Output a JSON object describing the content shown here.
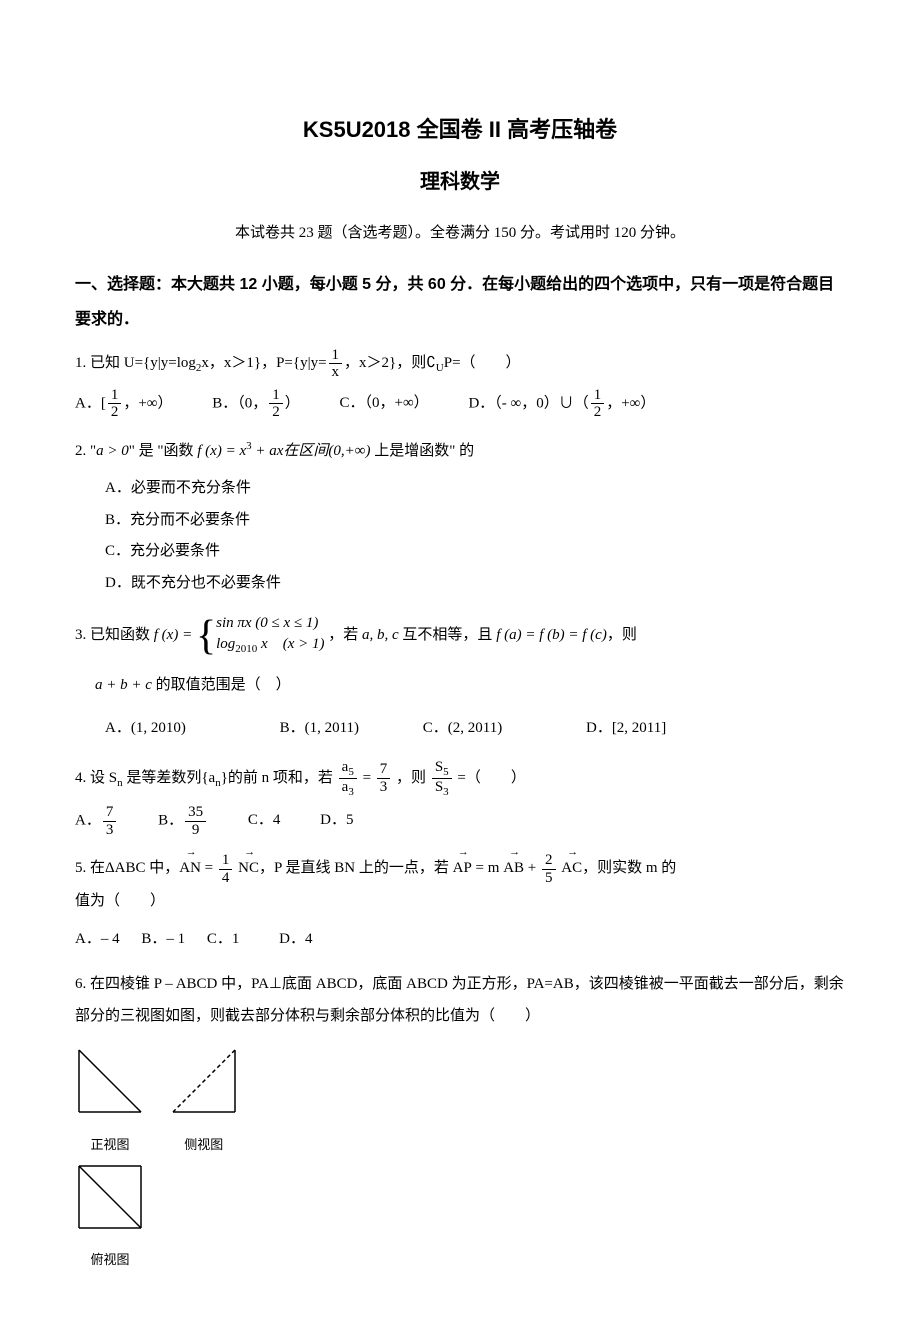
{
  "page": {
    "title": "KS5U2018 全国卷 II 高考压轴卷",
    "subtitle": "理科数学",
    "instructions": "本试卷共 23 题（含选考题）。全卷满分 150 分。考试用时 120 分钟。",
    "section_heading": "一、选择题：本大题共 12 小题，每小题 5 分，共 60 分．在每小题给出的四个选项中，只有一项是符合题目要求的．"
  },
  "questions": {
    "q1": {
      "stem_pre": "1. 已知 U={y|y=log",
      "stem_sub1": "2",
      "stem_mid1": "x，x＞1}，P={y|y=",
      "frac1_num": "1",
      "frac1_den": "x",
      "stem_mid2": "，x＞2}，则",
      "complement": "∁",
      "complement_sub": "U",
      "stem_end": "P=（　　）",
      "optA_pre": "A．[",
      "optA_num": "1",
      "optA_den": "2",
      "optA_post": "，+∞）",
      "optB_pre": "B．（0，",
      "optB_num": "1",
      "optB_den": "2",
      "optB_post": "）",
      "optC": "C．（0，+∞）",
      "optD_pre": "D．（- ∞，0）∪（",
      "optD_num": "1",
      "optD_den": "2",
      "optD_post": "，+∞）"
    },
    "q2": {
      "stem_pre": "2. \"",
      "a_gt": "a > 0",
      "stem_mid": "\" 是 \"函数 ",
      "fx": "f (x) = x",
      "sup3": "3",
      "plus_ax": " + ax在区间(0,+∞)",
      "stem_end": " 上是增函数\" 的",
      "optA": "A．必要而不充分条件",
      "optB": "B．充分而不必要条件",
      "optC": "C．充分必要条件",
      "optD": "D．既不充分也不必要条件"
    },
    "q3": {
      "stem_pre": "3. 已知函数 ",
      "fx_eq": "f (x) = ",
      "row1": "sin πx (0 ≤ x ≤ 1)",
      "row2_pre": "log",
      "row2_sub": "2010",
      "row2_post": " x　(x > 1)",
      "stem_mid": "，若 ",
      "abc": "a, b, c",
      "stem_mid2": " 互不相等，且 ",
      "eq": "f (a) = f (b) = f (c)",
      "stem_end": "，则",
      "line2_pre": "a + b + c",
      "line2_post": " 的取值范围是（　）",
      "optA": "A．(1, 2010)",
      "optB": "B．(1, 2011)",
      "optC": "C．(2, 2011)",
      "optD": "D．[2, 2011]"
    },
    "q4": {
      "stem_pre": "4. 设 S",
      "sub_n": "n",
      "stem_mid1": " 是等差数列{a",
      "stem_mid2": "}的前 n 项和，若",
      "frac1_num_pre": "a",
      "frac1_num_sub": "5",
      "frac1_den_pre": "a",
      "frac1_den_sub": "3",
      "eq1": "=",
      "frac2_num": "7",
      "frac2_den": "3",
      "stem_mid3": "，则",
      "frac3_num_pre": "S",
      "frac3_num_sub": "5",
      "frac3_den_pre": "S",
      "frac3_den_sub": "3",
      "stem_end": "=（　　）",
      "optA_pre": "A．",
      "optA_num": "7",
      "optA_den": "3",
      "optB_pre": "B．",
      "optB_num": "35",
      "optB_den": "9",
      "optC": "C．4",
      "optD": "D．5"
    },
    "q5": {
      "stem_pre": "5. 在ΔABC 中，",
      "an": "AN",
      "eq1": " = ",
      "frac1_num": "1",
      "frac1_den": "4",
      "nc": "NC",
      "stem_mid1": "，P 是直线 BN 上的一点，若 ",
      "ap": "AP",
      "eq2": " = m",
      "ab": "AB",
      "plus": " + ",
      "frac2_num": "2",
      "frac2_den": "5",
      "ac": "AC",
      "stem_end": "，则实数 m 的",
      "line2": "值为（　　）",
      "optA": "A．– 4",
      "optB": "B．– 1",
      "optC": "C．1",
      "optD": "D．4"
    },
    "q6": {
      "stem": "6. 在四棱锥 P – ABCD 中，PA⊥底面 ABCD，底面 ABCD 为正方形，PA=AB，该四棱锥被一平面截去一部分后，剩余部分的三视图如图，则截去部分体积与剩余部分体积的比值为（　　）",
      "label1": "正视图",
      "label2": "侧视图",
      "label3": "俯视图"
    }
  },
  "diagrams": {
    "size": 70,
    "stroke": "#000000",
    "stroke_width": 1.5,
    "dash": "4,3"
  }
}
